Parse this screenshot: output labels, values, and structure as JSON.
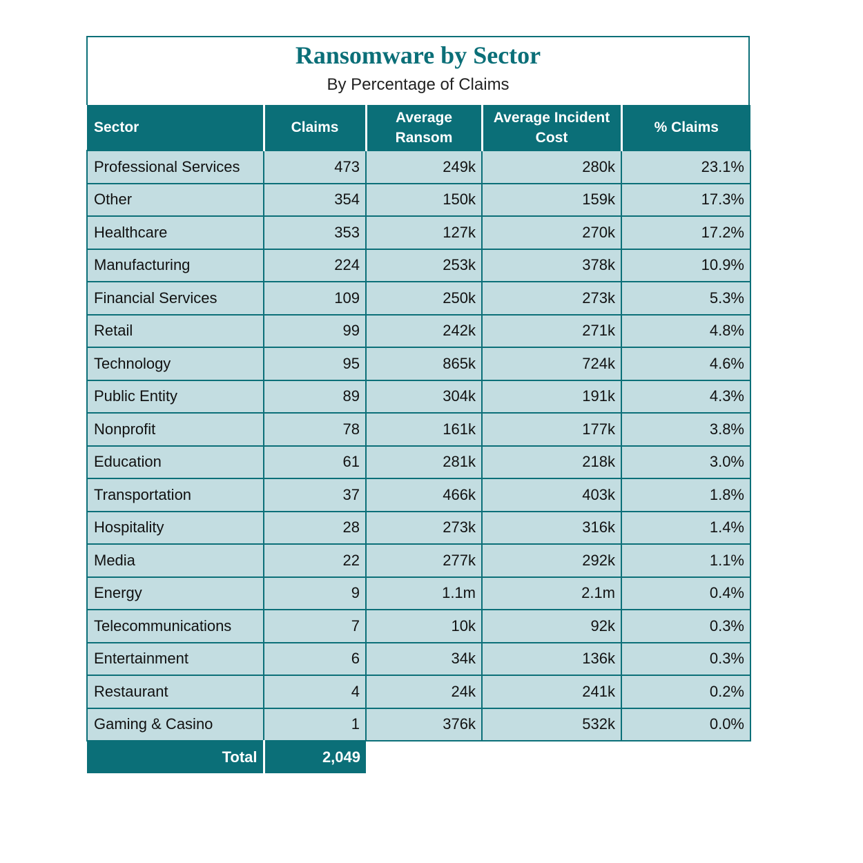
{
  "header": {
    "title": "Ransomware by Sector",
    "subtitle": "By Percentage of Claims"
  },
  "table": {
    "columns": [
      "Sector",
      "Claims",
      "Average Ransom",
      "Average Incident Cost",
      "% Claims"
    ],
    "rows": [
      [
        "Professional Services",
        "473",
        "249k",
        "280k",
        "23.1%"
      ],
      [
        "Other",
        "354",
        "150k",
        "159k",
        "17.3%"
      ],
      [
        "Healthcare",
        "353",
        "127k",
        "270k",
        "17.2%"
      ],
      [
        "Manufacturing",
        "224",
        "253k",
        "378k",
        "10.9%"
      ],
      [
        "Financial Services",
        "109",
        "250k",
        "273k",
        "5.3%"
      ],
      [
        "Retail",
        "99",
        "242k",
        "271k",
        "4.8%"
      ],
      [
        "Technology",
        "95",
        "865k",
        "724k",
        "4.6%"
      ],
      [
        "Public Entity",
        "89",
        "304k",
        "191k",
        "4.3%"
      ],
      [
        "Nonprofit",
        "78",
        "161k",
        "177k",
        "3.8%"
      ],
      [
        "Education",
        "61",
        "281k",
        "218k",
        "3.0%"
      ],
      [
        "Transportation",
        "37",
        "466k",
        "403k",
        "1.8%"
      ],
      [
        "Hospitality",
        "28",
        "273k",
        "316k",
        "1.4%"
      ],
      [
        "Media",
        "22",
        "277k",
        "292k",
        "1.1%"
      ],
      [
        "Energy",
        "9",
        "1.1m",
        "2.1m",
        "0.4%"
      ],
      [
        "Telecommunications",
        "7",
        "10k",
        "92k",
        "0.3%"
      ],
      [
        "Entertainment",
        "6",
        "34k",
        "136k",
        "0.3%"
      ],
      [
        "Restaurant",
        "4",
        "24k",
        "241k",
        "0.2%"
      ],
      [
        "Gaming & Casino",
        "1",
        "376k",
        "532k",
        "0.0%"
      ]
    ],
    "total": {
      "label": "Total",
      "value": "2,049"
    }
  }
}
